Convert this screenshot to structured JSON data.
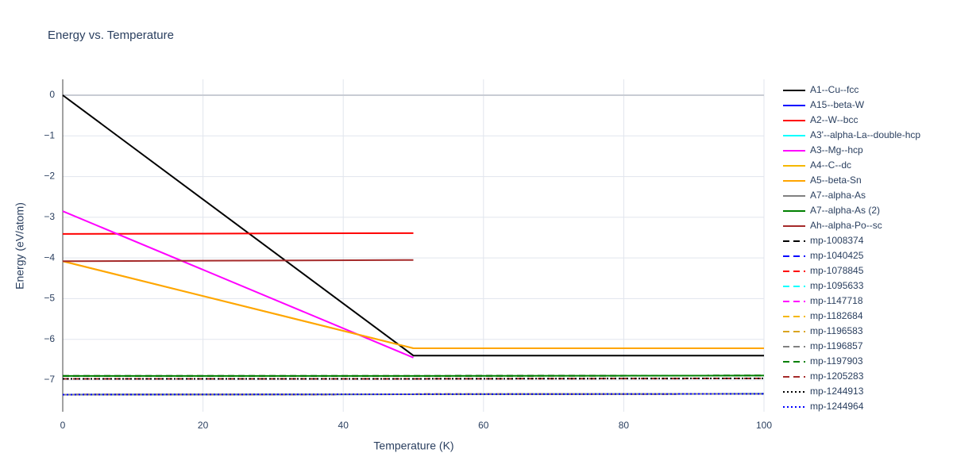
{
  "chart_data": {
    "type": "line",
    "title": "Energy vs. Temperature",
    "x_label": "Temperature (K)",
    "y_label": "Energy (eV/atom)",
    "x": [
      0,
      50,
      100
    ],
    "xlim": [
      0,
      100
    ],
    "xticks": [
      0,
      20,
      40,
      60,
      80,
      100
    ],
    "ylim": [
      -7.78,
      0.39
    ],
    "yticks": [
      0,
      {
        "value": -1,
        "label": "−1"
      },
      {
        "value": -2,
        "label": "−2"
      },
      {
        "value": -3,
        "label": "−3"
      },
      {
        "value": -4,
        "label": "−4"
      },
      {
        "value": -5,
        "label": "−5"
      },
      {
        "value": -6,
        "label": "−6"
      },
      {
        "value": -7,
        "label": "−7"
      }
    ],
    "grid": true,
    "legend": "right",
    "series": [
      {
        "name": "A1--Cu--fcc",
        "color": "#000000",
        "dash": "solid",
        "values": [
          0,
          -6.4,
          -6.4
        ]
      },
      {
        "name": "A15--beta-W",
        "color": "#0000ff",
        "dash": "solid",
        "values": [
          -7.36,
          -7.35,
          -7.34
        ]
      },
      {
        "name": "A2--W--bcc",
        "color": "#ff0000",
        "dash": "solid",
        "values": [
          -3.41,
          -3.39,
          null
        ]
      },
      {
        "name": "A3'--alpha-La--double-hcp",
        "color": "#00ffff",
        "dash": "solid",
        "values": [
          -7.36,
          -7.35,
          -7.34
        ]
      },
      {
        "name": "A3--Mg--hcp",
        "color": "#ff00ff",
        "dash": "solid",
        "values": [
          -2.85,
          -6.45,
          null
        ]
      },
      {
        "name": "A4--C--dc",
        "color": "#f5b800",
        "dash": "solid",
        "values": [
          -4.08,
          -6.22,
          -6.22
        ]
      },
      {
        "name": "A5--beta-Sn",
        "color": "#ffa500",
        "dash": "solid",
        "values": [
          -4.08,
          -6.22,
          -6.22
        ]
      },
      {
        "name": "A7--alpha-As",
        "color": "#808080",
        "dash": "solid",
        "values": [
          -7.36,
          -7.35,
          -7.34
        ]
      },
      {
        "name": "A7--alpha-As (2)",
        "color": "#008000",
        "dash": "solid",
        "values": [
          -6.9,
          -6.9,
          -6.89
        ]
      },
      {
        "name": "Ah--alpha-Po--sc",
        "color": "#a52a2a",
        "dash": "solid",
        "values": [
          -4.08,
          -4.05,
          null
        ]
      },
      {
        "name": "mp-1008374",
        "color": "#000000",
        "dash": "dash",
        "values": [
          -6.9,
          -6.9,
          -6.89
        ]
      },
      {
        "name": "mp-1040425",
        "color": "#0000ff",
        "dash": "dash",
        "values": [
          -7.36,
          -7.35,
          -7.34
        ]
      },
      {
        "name": "mp-1078845",
        "color": "#ff0000",
        "dash": "dash",
        "values": [
          -7.36,
          -7.35,
          -7.34
        ]
      },
      {
        "name": "mp-1095633",
        "color": "#00ffff",
        "dash": "dash",
        "values": [
          -7.36,
          -7.35,
          -7.34
        ]
      },
      {
        "name": "mp-1147718",
        "color": "#ff00ff",
        "dash": "dash",
        "values": [
          -7.36,
          -7.35,
          -7.34
        ]
      },
      {
        "name": "mp-1182684",
        "color": "#f5b800",
        "dash": "dash",
        "values": [
          -7.36,
          -7.35,
          -7.34
        ]
      },
      {
        "name": "mp-1196583",
        "color": "#daa520",
        "dash": "dash",
        "values": [
          -7.36,
          -7.35,
          -7.34
        ]
      },
      {
        "name": "mp-1196857",
        "color": "#808080",
        "dash": "dash",
        "values": [
          -7.36,
          -7.35,
          -7.34
        ]
      },
      {
        "name": "mp-1197903",
        "color": "#008000",
        "dash": "dash",
        "values": [
          -6.9,
          -6.9,
          -6.89
        ]
      },
      {
        "name": "mp-1205283",
        "color": "#a52a2a",
        "dash": "dash",
        "values": [
          -6.97,
          -6.97,
          -6.96
        ]
      },
      {
        "name": "mp-1244913",
        "color": "#000000",
        "dash": "dot",
        "values": [
          -6.97,
          -6.97,
          -6.96
        ]
      },
      {
        "name": "mp-1244964",
        "color": "#0000ff",
        "dash": "dot",
        "values": [
          -7.36,
          -7.35,
          -7.34
        ]
      }
    ]
  }
}
